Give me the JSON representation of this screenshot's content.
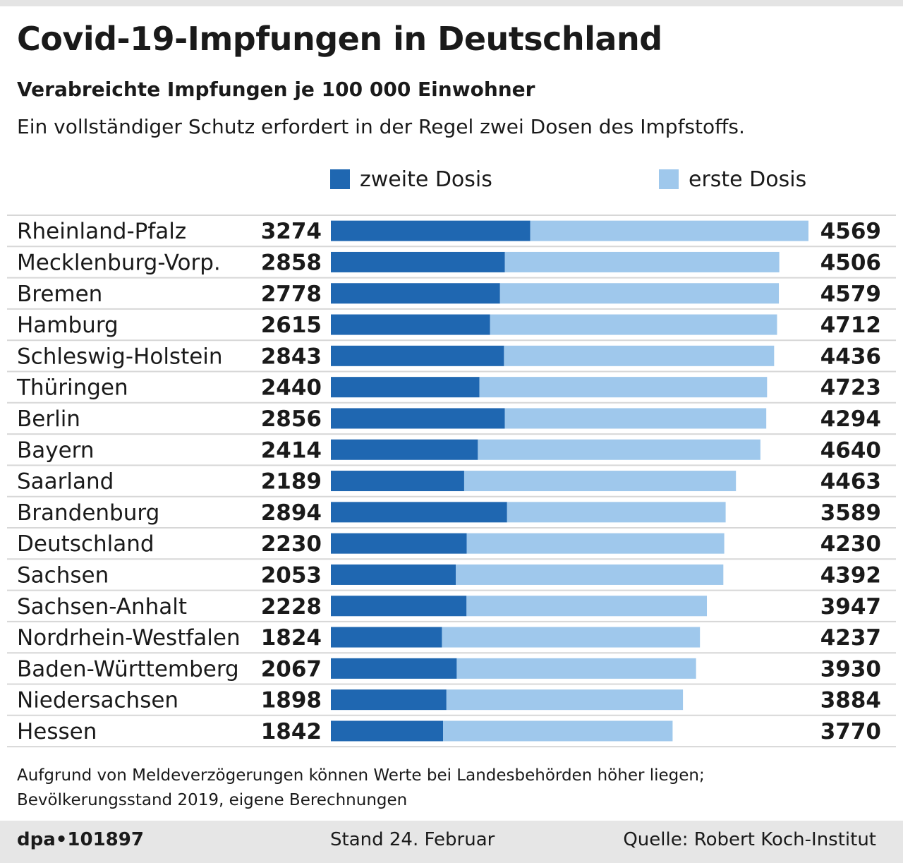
{
  "header": {
    "title": "Covid-19-Impfungen in Deutschland",
    "subtitle": "Verabreichte Impfungen je 100 000 Einwohner",
    "description": "Ein vollständiger Schutz erfordert in der Regel zwei Dosen des Impfstoffs."
  },
  "legend": {
    "second_label": "zweite Dosis",
    "first_label": "erste Dosis"
  },
  "colors": {
    "second_dose": "#1f67b1",
    "first_dose": "#9fc8ec",
    "row_divider": "#d7d7d7"
  },
  "chart_data": {
    "type": "bar",
    "orientation": "horizontal",
    "stacked": true,
    "title": "Verabreichte Impfungen je 100 000 Einwohner",
    "categories": [
      "Rheinland-Pfalz",
      "Mecklenburg-Vorp.",
      "Bremen",
      "Hamburg",
      "Schleswig-Holstein",
      "Thüringen",
      "Berlin",
      "Bayern",
      "Saarland",
      "Brandenburg",
      "Deutschland",
      "Sachsen",
      "Sachsen-Anhalt",
      "Nordrhein-Westfalen",
      "Baden-Württemberg",
      "Niedersachsen",
      "Hessen"
    ],
    "series": [
      {
        "name": "zweite Dosis",
        "values": [
          3274,
          2858,
          2778,
          2615,
          2843,
          2440,
          2856,
          2414,
          2189,
          2894,
          2230,
          2053,
          2228,
          1824,
          2067,
          1898,
          1842
        ]
      },
      {
        "name": "erste Dosis",
        "values": [
          4569,
          4506,
          4579,
          4712,
          4436,
          4723,
          4294,
          4640,
          4463,
          3589,
          4230,
          4392,
          3947,
          4237,
          3930,
          3884,
          3770
        ]
      }
    ],
    "xlim": [
      0,
      7843
    ],
    "legend_position": "top"
  },
  "notes": {
    "line1": "Aufgrund von Meldeverzögerungen können Werte  bei Landesbehörden höher liegen;",
    "line2": "Bevölkerungsstand 2019, eigene Berechnungen"
  },
  "footer": {
    "agency": "dpa•101897",
    "date": "Stand 24. Februar",
    "source": "Quelle: Robert Koch-Institut"
  }
}
